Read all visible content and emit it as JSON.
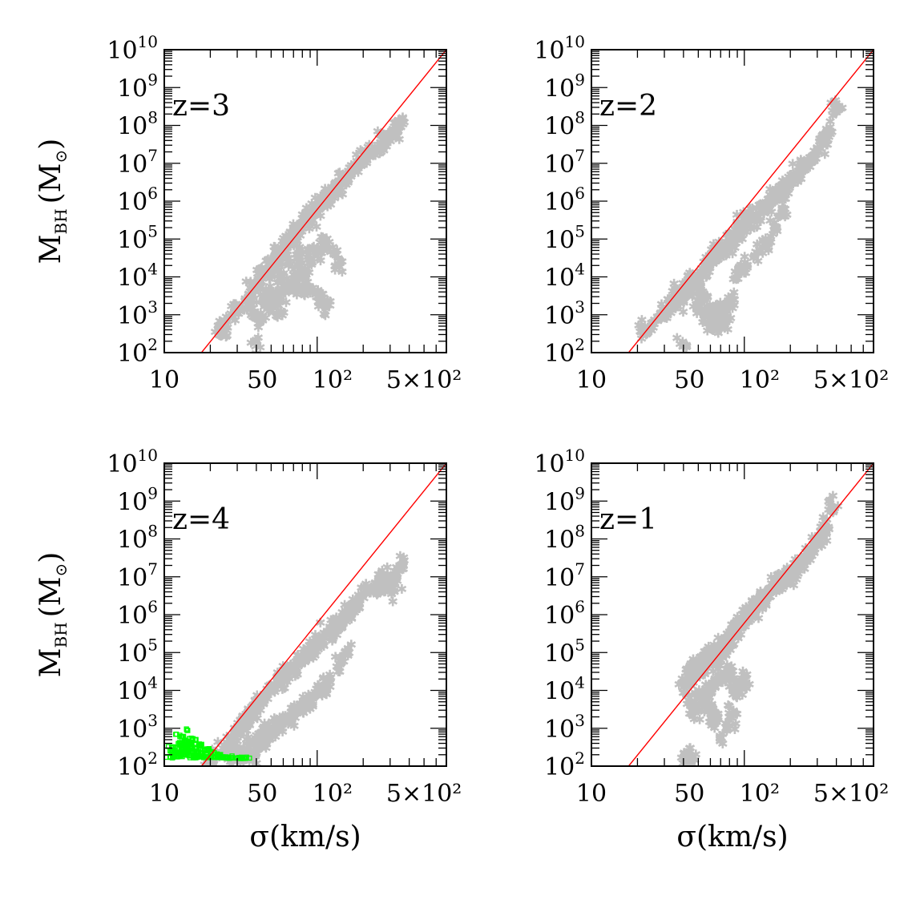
{
  "figure": {
    "colors": {
      "relation": "#ff0000",
      "points": "#c0c0c0",
      "seeds": "#00ff00",
      "frame": "#000000"
    }
  },
  "chart_data": [
    {
      "type": "scatter",
      "panel": "top-left",
      "label": "z=3",
      "ylabel": {
        "main": "M",
        "sub": "BH",
        "unit": "(M",
        "unit_sub": "⊙",
        "close": ")"
      },
      "xlabel": "",
      "x_scale": "log",
      "y_scale": "log",
      "xlim": [
        10,
        700
      ],
      "ylim": [
        100,
        10000000000
      ],
      "x_ticks": [
        {
          "value": 10,
          "text": "10"
        },
        {
          "value": 50,
          "text": "50"
        },
        {
          "value": 100,
          "text": "10²"
        },
        {
          "value": 500,
          "text": "5×10²"
        }
      ],
      "y_ticks": [
        {
          "value": 100,
          "base": "10",
          "exp": "2"
        },
        {
          "value": 1000,
          "base": "10",
          "exp": "3"
        },
        {
          "value": 10000,
          "base": "10",
          "exp": "4"
        },
        {
          "value": 100000,
          "base": "10",
          "exp": "5"
        },
        {
          "value": 1000000,
          "base": "10",
          "exp": "6"
        },
        {
          "value": 10000000,
          "base": "10",
          "exp": "7"
        },
        {
          "value": 100000000,
          "base": "10",
          "exp": "8"
        },
        {
          "value": 1000000000,
          "base": "10",
          "exp": "9"
        },
        {
          "value": 10000000000,
          "base": "10",
          "exp": "10"
        }
      ],
      "relation_line": {
        "x": [
          17.5,
          700
        ],
        "y": [
          100,
          10000000000
        ]
      },
      "series": [
        {
          "marker": "star",
          "color": "#c0c0c0",
          "x": [
            23,
            25,
            28,
            31,
            34,
            36,
            38,
            40,
            42,
            45,
            48,
            50,
            52,
            55,
            58,
            60,
            62,
            65,
            68,
            70,
            72,
            75,
            78,
            80,
            82,
            85,
            88,
            90,
            92,
            95,
            98,
            100,
            105,
            110,
            115,
            120,
            125,
            130,
            135,
            140,
            150,
            160,
            170,
            180,
            190,
            200,
            220,
            240,
            260,
            280,
            300,
            320,
            340,
            360,
            60,
            70,
            80,
            90,
            100,
            110,
            120,
            55,
            65,
            75,
            85,
            95,
            105,
            115,
            38,
            42,
            45,
            48,
            52,
            56,
            62,
            70,
            80,
            90,
            100,
            110,
            130,
            140,
            40,
            48,
            58
          ],
          "y": [
            420,
            520,
            900,
            1500,
            2300,
            3400,
            5000,
            6500,
            9000,
            12000,
            16000,
            20000,
            26000,
            34000,
            42000,
            55000,
            68000,
            85000,
            100000,
            120000,
            140000,
            170000,
            200000,
            230000,
            270000,
            310000,
            360000,
            400000,
            460000,
            520000,
            600000,
            700000,
            850000,
            1000000,
            1200000,
            1400000,
            1700000,
            2000000,
            2500000,
            3000000,
            4000000,
            5000000,
            6500000,
            8000000,
            10000000,
            13000000,
            17000000,
            22000000,
            30000000,
            40000000,
            55000000,
            70000000,
            90000000,
            110000000,
            8000,
            6000,
            5000,
            4000,
            3000,
            2000,
            1800,
            15000,
            20000,
            30000,
            45000,
            60000,
            80000,
            100000,
            1500,
            800,
            2500,
            3500,
            2800,
            3200,
            4500,
            9000,
            12000,
            25000,
            35000,
            50000,
            40000,
            18000,
            150,
            2000,
            1200
          ]
        },
        {
          "marker": "square",
          "color": "#00ff00",
          "x": [],
          "y": []
        }
      ]
    },
    {
      "type": "scatter",
      "panel": "top-right",
      "label": "z=2",
      "xlabel": "",
      "x_scale": "log",
      "y_scale": "log",
      "xlim": [
        10,
        700
      ],
      "ylim": [
        100,
        10000000000
      ],
      "x_ticks": [
        {
          "value": 10,
          "text": "10"
        },
        {
          "value": 50,
          "text": "50"
        },
        {
          "value": 100,
          "text": "10²"
        },
        {
          "value": 500,
          "text": "5×10²"
        }
      ],
      "y_ticks": [
        {
          "value": 100,
          "base": "10",
          "exp": "2"
        },
        {
          "value": 1000,
          "base": "10",
          "exp": "3"
        },
        {
          "value": 10000,
          "base": "10",
          "exp": "4"
        },
        {
          "value": 100000,
          "base": "10",
          "exp": "5"
        },
        {
          "value": 1000000,
          "base": "10",
          "exp": "6"
        },
        {
          "value": 10000000,
          "base": "10",
          "exp": "7"
        },
        {
          "value": 100000000,
          "base": "10",
          "exp": "8"
        },
        {
          "value": 1000000000,
          "base": "10",
          "exp": "9"
        },
        {
          "value": 10000000000,
          "base": "10",
          "exp": "10"
        }
      ],
      "relation_line": {
        "x": [
          17.5,
          700
        ],
        "y": [
          100,
          10000000000
        ]
      },
      "series": [
        {
          "marker": "star",
          "color": "#c0c0c0",
          "x": [
            22,
            25,
            28,
            30,
            33,
            36,
            40,
            44,
            48,
            52,
            56,
            60,
            65,
            70,
            75,
            80,
            85,
            90,
            95,
            100,
            110,
            120,
            130,
            140,
            150,
            160,
            170,
            180,
            190,
            200,
            220,
            240,
            260,
            280,
            300,
            330,
            360,
            400,
            36,
            38,
            42,
            45,
            50,
            55,
            60,
            65,
            70,
            75,
            80,
            85,
            40,
            55,
            62,
            68,
            72,
            90,
            100,
            120,
            140,
            160,
            180,
            50
          ],
          "y": [
            400,
            600,
            900,
            1300,
            2000,
            3000,
            4500,
            6500,
            9000,
            13000,
            18000,
            25000,
            35000,
            48000,
            65000,
            85000,
            110000,
            140000,
            180000,
            230000,
            330000,
            450000,
            600000,
            800000,
            1000000,
            1300000,
            1700000,
            2200000,
            2800000,
            3500000,
            5000000,
            7000000,
            10000000,
            14000000,
            20000000,
            40000000,
            70000000,
            280000000,
            3000,
            2000,
            5000,
            8000,
            1500,
            1300,
            1000,
            1300,
            900,
            700,
            1800,
            2500,
            150,
            3000,
            550,
            500,
            1500,
            12000,
            20000,
            45000,
            80000,
            200000,
            500000,
            6000
          ]
        },
        {
          "marker": "square",
          "color": "#00ff00",
          "x": [],
          "y": []
        }
      ]
    },
    {
      "type": "scatter",
      "panel": "bottom-left",
      "label": "z=4",
      "ylabel": {
        "main": "M",
        "sub": "BH",
        "unit": "(M",
        "unit_sub": "⊙",
        "close": ")"
      },
      "xlabel": "σ(km/s)",
      "x_scale": "log",
      "y_scale": "log",
      "xlim": [
        10,
        700
      ],
      "ylim": [
        100,
        10000000000
      ],
      "x_ticks": [
        {
          "value": 10,
          "text": "10"
        },
        {
          "value": 50,
          "text": "50"
        },
        {
          "value": 100,
          "text": "10²"
        },
        {
          "value": 500,
          "text": "5×10²"
        }
      ],
      "y_ticks": [
        {
          "value": 100,
          "base": "10",
          "exp": "2"
        },
        {
          "value": 1000,
          "base": "10",
          "exp": "3"
        },
        {
          "value": 10000,
          "base": "10",
          "exp": "4"
        },
        {
          "value": 100000,
          "base": "10",
          "exp": "5"
        },
        {
          "value": 1000000,
          "base": "10",
          "exp": "6"
        },
        {
          "value": 10000000,
          "base": "10",
          "exp": "7"
        },
        {
          "value": 100000000,
          "base": "10",
          "exp": "8"
        },
        {
          "value": 1000000000,
          "base": "10",
          "exp": "9"
        },
        {
          "value": 10000000000,
          "base": "10",
          "exp": "10"
        }
      ],
      "relation_line": {
        "x": [
          17.5,
          700
        ],
        "y": [
          100,
          10000000000
        ]
      },
      "series": [
        {
          "marker": "star",
          "color": "#c0c0c0",
          "x": [
            20,
            22,
            24,
            26,
            28,
            30,
            32,
            34,
            36,
            38,
            40,
            43,
            46,
            50,
            54,
            58,
            62,
            66,
            70,
            75,
            80,
            85,
            90,
            95,
            100,
            105,
            110,
            120,
            130,
            140,
            150,
            160,
            170,
            180,
            200,
            220,
            240,
            260,
            280,
            300,
            330,
            360,
            28,
            30,
            33,
            36,
            40,
            44,
            48,
            52,
            56,
            60,
            65,
            70,
            80,
            90,
            100,
            110,
            120,
            140,
            160,
            34,
            38,
            42,
            46
          ],
          "y": [
            150,
            200,
            300,
            420,
            600,
            850,
            1200,
            1600,
            2200,
            3000,
            4000,
            5500,
            7500,
            10000,
            14000,
            19000,
            25000,
            33000,
            42000,
            55000,
            70000,
            90000,
            110000,
            140000,
            170000,
            210000,
            260000,
            360000,
            480000,
            650000,
            850000,
            1100000,
            1400000,
            1800000,
            2800000,
            4000000,
            5500000,
            7500000,
            10000000,
            5000000,
            8000000,
            20000000,
            160,
            250,
            300,
            450,
            500,
            700,
            900,
            1000,
            1200,
            1500,
            1800,
            2500,
            3500,
            5000,
            8000,
            12000,
            20000,
            50000,
            100000,
            160,
            180,
            350,
            500
          ]
        },
        {
          "marker": "square",
          "color": "#00ff00",
          "x": [
            11,
            11.5,
            12,
            12.5,
            13,
            13.5,
            14,
            14.5,
            15,
            15.5,
            16,
            16.5,
            17,
            18,
            19,
            20,
            21,
            22,
            23,
            24,
            25,
            26,
            28,
            30,
            32,
            34,
            11.2,
            12.2,
            13.2,
            14.2,
            15.2,
            16.2,
            17.2,
            12.8,
            13.8,
            14.8,
            15.8,
            18.5,
            20.5,
            22.5,
            13,
            14,
            15,
            16,
            12,
            17,
            19,
            11.5,
            14.5,
            12.5,
            13.5
          ],
          "y": [
            170,
            190,
            210,
            180,
            230,
            200,
            260,
            190,
            220,
            170,
            200,
            180,
            190,
            175,
            170,
            180,
            175,
            170,
            172,
            168,
            170,
            165,
            168,
            165,
            162,
            160,
            250,
            300,
            350,
            280,
            320,
            240,
            220,
            400,
            450,
            380,
            300,
            260,
            230,
            200,
            600,
            900,
            550,
            500,
            700,
            350,
            280,
            320,
            420,
            230,
            240
          ]
        }
      ]
    },
    {
      "type": "scatter",
      "panel": "bottom-right",
      "label": "z=1",
      "xlabel": "σ(km/s)",
      "x_scale": "log",
      "y_scale": "log",
      "xlim": [
        10,
        700
      ],
      "ylim": [
        100,
        10000000000
      ],
      "x_ticks": [
        {
          "value": 10,
          "text": "10"
        },
        {
          "value": 50,
          "text": "50"
        },
        {
          "value": 100,
          "text": "10²"
        },
        {
          "value": 500,
          "text": "5×10²"
        }
      ],
      "y_ticks": [
        {
          "value": 100,
          "base": "10",
          "exp": "2"
        },
        {
          "value": 1000,
          "base": "10",
          "exp": "3"
        },
        {
          "value": 10000,
          "base": "10",
          "exp": "4"
        },
        {
          "value": 100000,
          "base": "10",
          "exp": "5"
        },
        {
          "value": 1000000,
          "base": "10",
          "exp": "6"
        },
        {
          "value": 10000000,
          "base": "10",
          "exp": "7"
        },
        {
          "value": 100000000,
          "base": "10",
          "exp": "8"
        },
        {
          "value": 1000000000,
          "base": "10",
          "exp": "9"
        },
        {
          "value": 10000000000,
          "base": "10",
          "exp": "10"
        }
      ],
      "relation_line": {
        "x": [
          17.5,
          700
        ],
        "y": [
          100,
          10000000000
        ]
      },
      "series": [
        {
          "marker": "star",
          "color": "#c0c0c0",
          "x": [
            40,
            42,
            44,
            46,
            48,
            50,
            52,
            55,
            58,
            60,
            62,
            65,
            68,
            70,
            72,
            75,
            78,
            80,
            85,
            90,
            95,
            100,
            105,
            110,
            115,
            120,
            125,
            130,
            140,
            150,
            160,
            170,
            180,
            190,
            200,
            210,
            220,
            240,
            260,
            280,
            300,
            320,
            340,
            380,
            45,
            48,
            52,
            56,
            60,
            65,
            70,
            75,
            80,
            85,
            90,
            100,
            42,
            44,
            62,
            66,
            70,
            80,
            85,
            95
          ],
          "y": [
            12000,
            20000,
            15000,
            30000,
            25000,
            40000,
            35000,
            60000,
            50000,
            80000,
            70000,
            100000,
            90000,
            150000,
            120000,
            200000,
            180000,
            250000,
            350000,
            500000,
            600000,
            800000,
            1000000,
            1100000,
            1500000,
            1800000,
            2200000,
            2800000,
            3500000,
            4500000,
            5500000,
            7000000,
            8500000,
            10000000,
            12000000,
            15000000,
            18000000,
            25000000,
            35000000,
            50000000,
            80000000,
            120000000,
            200000000,
            650000000,
            4500,
            3000,
            8000,
            5000,
            12000,
            20000,
            25000,
            18000,
            30000,
            10000,
            15000,
            20000,
            160,
            165,
            2800,
            1800,
            550,
            1200,
            2500,
            15000
          ]
        },
        {
          "marker": "square",
          "color": "#00ff00",
          "x": [],
          "y": []
        }
      ]
    }
  ]
}
